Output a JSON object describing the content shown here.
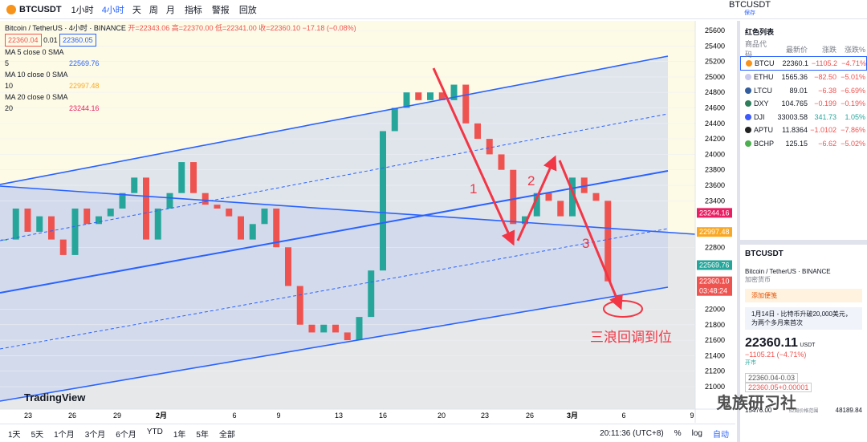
{
  "toolbar": {
    "symbol": "BTCUSDT",
    "intervals": [
      "1小时",
      "4小时",
      "天",
      "周",
      "月"
    ],
    "indicators": "指标",
    "alerts": "警报",
    "replay": "回放",
    "layout_symbol": "BTCUSDT",
    "save": "保存"
  },
  "legend": {
    "title": "Bitcoin / TetherUS · 4小时 · BINANCE",
    "ohlc": "开=22343.06 高=22370.00 低=22341.00 收=22360.10 −17.18 (−0.08%)",
    "bid": "22360.04",
    "spread": "0.01",
    "ask": "22360.05",
    "ma": [
      {
        "label": "MA 5 close 0 SMA 5",
        "value": "22569.76",
        "color": "#2962ff"
      },
      {
        "label": "MA 10 close 0 SMA 10",
        "value": "22997.48",
        "color": "#f9a825"
      },
      {
        "label": "MA 20 close 0 SMA 20",
        "value": "23244.16",
        "color": "#e91e63"
      }
    ]
  },
  "price_chart": {
    "ylim": [
      20710,
      25724
    ],
    "yticks": [
      21000,
      21200,
      21400,
      21600,
      21800,
      22000,
      22800,
      23400,
      23600,
      23800,
      24000,
      24200,
      24400,
      24600,
      24800,
      25000,
      25200,
      25400,
      25600
    ],
    "closes": [
      22900,
      23300,
      23000,
      23200,
      22900,
      22700,
      23300,
      23100,
      23200,
      23300,
      23500,
      23700,
      22900,
      23300,
      23500,
      23900,
      23500,
      23350,
      23300,
      23200,
      22900,
      23100,
      23300,
      22800,
      22300,
      21800,
      21700,
      21800,
      21700,
      21600,
      21900,
      22500,
      24300,
      24600,
      24800,
      24700,
      24800,
      24700,
      24900,
      24400,
      24200,
      24000,
      23800,
      23100,
      23200,
      23500,
      23400,
      23200,
      23700,
      23500,
      23400,
      22360.1
    ],
    "up_color": "#26a69a",
    "down_color": "#ef5350",
    "tags": [
      {
        "value": 23244.16,
        "label": "23244.16",
        "color": "#e91e63"
      },
      {
        "value": 22997.48,
        "label": "22997.48",
        "color": "#f9a825"
      },
      {
        "value": 22569.76,
        "label": "22569.76",
        "color": "#26a69a"
      },
      {
        "value": 22360.1,
        "label": "22360.10",
        "color": "#ef5350"
      }
    ],
    "countdown": "03:48:24",
    "annotations": [
      "1",
      "2",
      "3",
      "三浪回调到位"
    ],
    "dates": [
      "23",
      "26",
      "29",
      "2月",
      "6",
      "9",
      "13",
      "16",
      "20",
      "23",
      "26",
      "3月",
      "6",
      "9"
    ],
    "watermark": "TradingView"
  },
  "bottom": {
    "ranges": [
      "1天",
      "5天",
      "1个月",
      "3个月",
      "6个月",
      "YTD",
      "1年",
      "5年",
      "全部"
    ],
    "time": "20:11:36 (UTC+8)",
    "percent": "%",
    "log": "log",
    "auto": "自动"
  },
  "watchlist": {
    "title": "红色列表",
    "columns": [
      "商品代码",
      "最新价",
      "涨跌",
      "涨跌%"
    ],
    "rows": [
      {
        "symbol": "BTCU",
        "last": "22360.1",
        "change": "−1105.2",
        "change_pct": "−4.71%",
        "icon_color": "#f7931a"
      },
      {
        "symbol": "ETHU",
        "last": "1565.36",
        "change": "−82.50",
        "change_pct": "−5.01%",
        "icon_color": "#c9c9f0"
      },
      {
        "symbol": "LTCU",
        "last": "89.01",
        "change": "−6.38",
        "change_pct": "−6.69%",
        "icon_color": "#345d9d"
      },
      {
        "symbol": "DXY",
        "last": "104.765",
        "change": "−0.199",
        "change_pct": "−0.19%",
        "icon_color": "#2e7d5b"
      },
      {
        "symbol": "DJI",
        "last": "33003.58",
        "change": "341.73",
        "change_pct": "1.05%",
        "icon_color": "#3d5afe"
      },
      {
        "symbol": "APTU",
        "last": "11.8364",
        "change": "−1.0102",
        "change_pct": "−7.86%",
        "icon_color": "#222"
      },
      {
        "symbol": "BCHP",
        "last": "125.15",
        "change": "−6.62",
        "change_pct": "−5.02%",
        "icon_color": "#4caf50"
      }
    ]
  },
  "detail": {
    "symbol": "BTCUSDT",
    "description": "Bitcoin / TetherUS · BINANCE",
    "category": "加密货币",
    "add_note": "添加便笺",
    "news": "1月14日 - 比特币升破20,000美元，为两个多月来首次",
    "price": "22360.11",
    "currency": "USDT",
    "change": "−1105.21 (−4.71%)",
    "status": "开市",
    "bid": "22360.04-0.03",
    "ask": "22360.05+0.00001",
    "range_low": "15476.00",
    "range_label": "52周价格范围",
    "range_high": "48189.84",
    "watermark": "鬼族研习社"
  }
}
